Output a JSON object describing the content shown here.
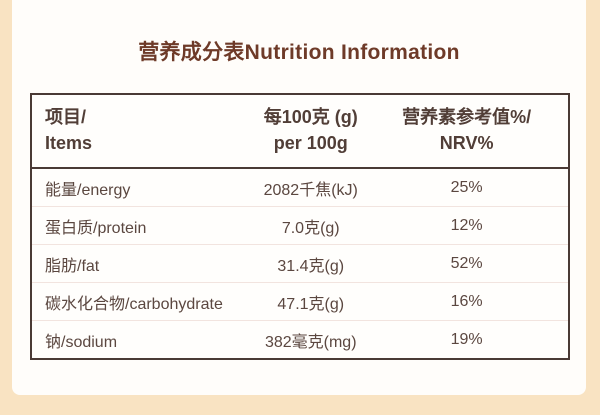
{
  "title": {
    "text": "营养成分表Nutrition Information"
  },
  "table": {
    "header": {
      "items_zh": "项目/",
      "items_en": "Items",
      "per100_zh": "每100克 (g)",
      "per100_en": "per 100g",
      "nrv_zh": "营养素参考值%/",
      "nrv_en": "NRV%"
    },
    "rows": [
      {
        "item": "能量/energy",
        "amount": "2082千焦(kJ)",
        "nrv": "25%"
      },
      {
        "item": "蛋白质/protein",
        "amount": "7.0克(g)",
        "nrv": "12%"
      },
      {
        "item": "脂肪/fat",
        "amount": "31.4克(g)",
        "nrv": "52%"
      },
      {
        "item": "碳水化合物/carbohydrate",
        "amount": "47.1克(g)",
        "nrv": "16%"
      },
      {
        "item": "钠/sodium",
        "amount": "382毫克(mg)",
        "nrv": "19%"
      }
    ]
  },
  "colors": {
    "page_background": "#f9e3c2",
    "card_background": "#fffdfa",
    "title_text": "#6e3a28",
    "table_border": "#4a3a35",
    "header_text": "#513e37",
    "body_text": "#5b4740",
    "row_divider": "#f2e4df"
  }
}
